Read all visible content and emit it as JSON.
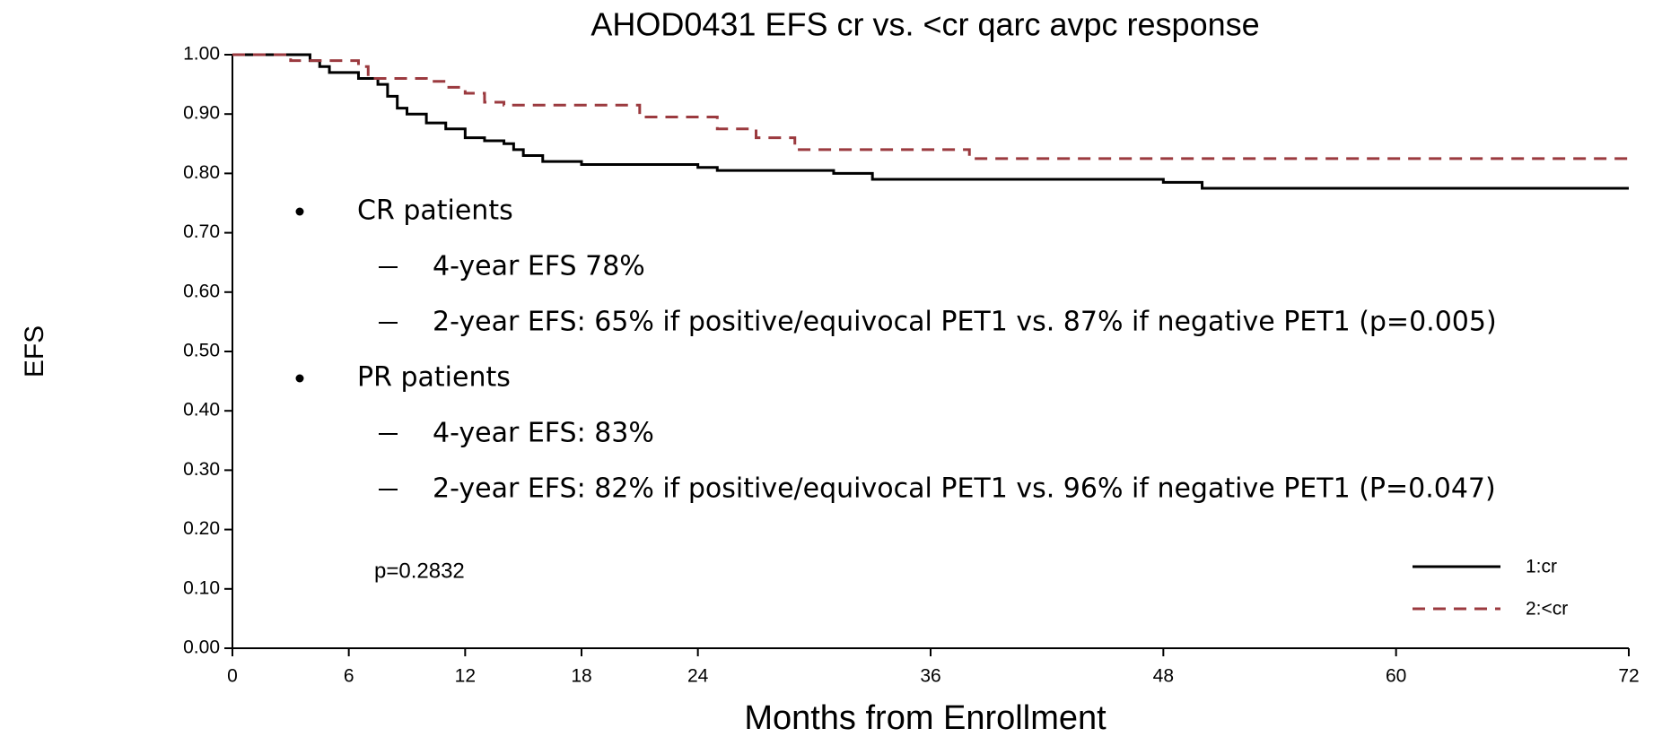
{
  "chart_data": {
    "type": "step",
    "title": "AHOD0431 EFS cr vs. <cr qarc avpc response",
    "x_label": "Months from Enrollment",
    "y_label": "EFS",
    "annotation": "p=0.2832",
    "notes": [
      {
        "text": "CR patients",
        "items": [
          "4-year EFS 78%",
          "2-year EFS: 65% if positive/equivocal PET1 vs. 87% if negative PET1 (p=0.005)"
        ]
      },
      {
        "text": "PR patients",
        "items": [
          "4-year EFS: 83%",
          "2-year EFS: 82% if positive/equivocal PET1 vs. 96% if negative PET1 (P=0.047)"
        ]
      }
    ],
    "series": [
      {
        "name": "1:cr",
        "color": "#000000",
        "dash": false,
        "x": [
          0,
          4,
          4.5,
          5,
          6.5,
          7.5,
          8,
          8.5,
          9,
          10,
          11,
          12,
          13,
          14,
          14.5,
          15,
          16,
          18,
          24,
          25,
          31,
          33,
          48,
          50,
          72
        ],
        "values": [
          1.0,
          0.99,
          0.98,
          0.97,
          0.96,
          0.95,
          0.93,
          0.91,
          0.9,
          0.885,
          0.875,
          0.86,
          0.855,
          0.85,
          0.84,
          0.83,
          0.82,
          0.815,
          0.81,
          0.805,
          0.8,
          0.79,
          0.785,
          0.775,
          0.775
        ]
      },
      {
        "name": "2:<cr",
        "color": "#9b3a3f",
        "dash": true,
        "x": [
          0,
          3,
          6.5,
          7,
          10,
          11,
          12,
          13,
          14,
          21,
          25,
          27,
          29,
          38,
          72
        ],
        "values": [
          1.0,
          0.99,
          0.98,
          0.96,
          0.955,
          0.945,
          0.935,
          0.92,
          0.915,
          0.895,
          0.875,
          0.86,
          0.84,
          0.825,
          0.825
        ]
      }
    ],
    "xlim": [
      0,
      72
    ],
    "xticks": [
      0,
      6,
      12,
      18,
      24,
      36,
      48,
      60,
      72
    ],
    "ylim": [
      0,
      1
    ],
    "yticks": [
      {
        "value": 0,
        "label": "0.00"
      },
      {
        "value": 0.1,
        "label": "0.10"
      },
      {
        "value": 0.2,
        "label": "0.20"
      },
      {
        "value": 0.3,
        "label": "0.30"
      },
      {
        "value": 0.4,
        "label": "0.40"
      },
      {
        "value": 0.5,
        "label": "0.50"
      },
      {
        "value": 0.6,
        "label": "0.60"
      },
      {
        "value": 0.7,
        "label": "0.70"
      },
      {
        "value": 0.8,
        "label": "0.80"
      },
      {
        "value": 0.9,
        "label": "0.90"
      },
      {
        "value": 1,
        "label": "1.00"
      }
    ],
    "legend": "lower right",
    "grid": false
  }
}
